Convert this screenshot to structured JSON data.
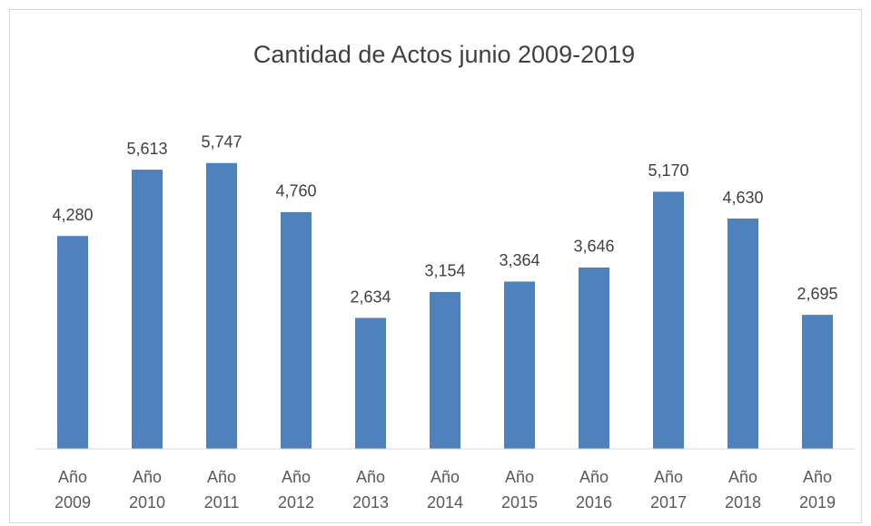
{
  "chart_data": {
    "type": "bar",
    "title": "Cantidad de Actos junio 2009-2019",
    "categories": [
      "Año 2009",
      "Año 2010",
      "Año 2011",
      "Año 2012",
      "Año 2013",
      "Año 2014",
      "Año 2015",
      "Año 2016",
      "Año 2017",
      "Año 2018",
      "Año 2019"
    ],
    "values": [
      4280,
      5613,
      5747,
      4760,
      2634,
      3154,
      3364,
      3646,
      5170,
      4630,
      2695
    ],
    "value_labels": [
      "4,280",
      "5,613",
      "5,747",
      "4,760",
      "2,634",
      "3,154",
      "3,364",
      "3,646",
      "5,170",
      "4,630",
      "2,695"
    ],
    "color": "#4f81bd",
    "ylim": [
      0,
      7000
    ]
  }
}
